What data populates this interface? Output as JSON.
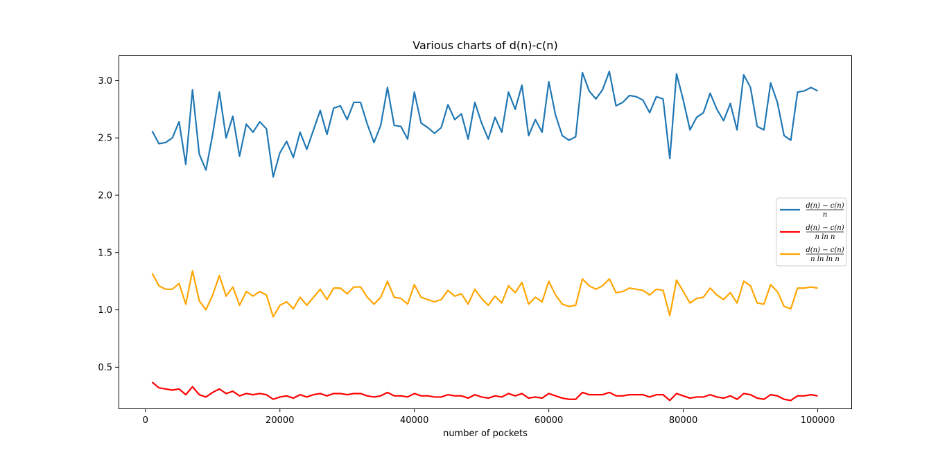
{
  "chart_data": {
    "type": "line",
    "title": "Various charts of d(n)-c(n)",
    "xlabel": "number of pockets",
    "ylabel": "",
    "xlim": [
      -4000,
      105000
    ],
    "ylim": [
      0.14,
      3.22
    ],
    "xticks": [
      0,
      20000,
      40000,
      60000,
      80000,
      100000
    ],
    "xtick_labels": [
      "0",
      "20000",
      "40000",
      "60000",
      "80000",
      "100000"
    ],
    "yticks": [
      0.5,
      1.0,
      1.5,
      2.0,
      2.5,
      3.0
    ],
    "ytick_labels": [
      "0.5",
      "1.0",
      "1.5",
      "2.0",
      "2.5",
      "3.0"
    ],
    "grid": false,
    "legend_position": "center-right",
    "x": [
      1000,
      2000,
      3000,
      4000,
      5000,
      6000,
      7000,
      8000,
      9000,
      10000,
      11000,
      12000,
      13000,
      14000,
      15000,
      16000,
      17000,
      18000,
      19000,
      20000,
      21000,
      22000,
      23000,
      24000,
      25000,
      26000,
      27000,
      28000,
      29000,
      30000,
      31000,
      32000,
      33000,
      34000,
      35000,
      36000,
      37000,
      38000,
      39000,
      40000,
      41000,
      42000,
      43000,
      44000,
      45000,
      46000,
      47000,
      48000,
      49000,
      50000,
      51000,
      52000,
      53000,
      54000,
      55000,
      56000,
      57000,
      58000,
      59000,
      60000,
      61000,
      62000,
      63000,
      64000,
      65000,
      66000,
      67000,
      68000,
      69000,
      70000,
      71000,
      72000,
      73000,
      74000,
      75000,
      76000,
      77000,
      78000,
      79000,
      80000,
      81000,
      82000,
      83000,
      84000,
      85000,
      86000,
      87000,
      88000,
      89000,
      90000,
      91000,
      92000,
      93000,
      94000,
      95000,
      96000,
      97000,
      98000,
      99000,
      100000
    ],
    "series": [
      {
        "name": "d(n)−c(n) / n",
        "legend_num": "d(n) − c(n)",
        "legend_den": "n",
        "color": "#1f77b4",
        "values": [
          2.56,
          2.45,
          2.46,
          2.5,
          2.64,
          2.27,
          2.92,
          2.36,
          2.22,
          2.53,
          2.9,
          2.5,
          2.69,
          2.34,
          2.62,
          2.55,
          2.64,
          2.58,
          2.16,
          2.37,
          2.47,
          2.33,
          2.55,
          2.4,
          2.57,
          2.74,
          2.53,
          2.76,
          2.78,
          2.66,
          2.81,
          2.81,
          2.62,
          2.46,
          2.61,
          2.94,
          2.61,
          2.6,
          2.49,
          2.9,
          2.63,
          2.59,
          2.54,
          2.59,
          2.79,
          2.66,
          2.71,
          2.49,
          2.81,
          2.63,
          2.49,
          2.68,
          2.55,
          2.9,
          2.75,
          2.96,
          2.52,
          2.66,
          2.55,
          2.99,
          2.7,
          2.52,
          2.48,
          2.51,
          3.07,
          2.91,
          2.84,
          2.92,
          3.08,
          2.78,
          2.81,
          2.87,
          2.86,
          2.83,
          2.72,
          2.86,
          2.84,
          2.32,
          3.06,
          2.83,
          2.57,
          2.68,
          2.72,
          2.89,
          2.75,
          2.65,
          2.8,
          2.57,
          3.05,
          2.94,
          2.6,
          2.57,
          2.98,
          2.81,
          2.52,
          2.48,
          2.9,
          2.91,
          2.94,
          2.91
        ]
      },
      {
        "name": "d(n)−c(n) / n ln n",
        "legend_num": "d(n) − c(n)",
        "legend_den": "n ln n",
        "color": "#ff0000",
        "values": [
          0.37,
          0.32,
          0.31,
          0.3,
          0.31,
          0.26,
          0.33,
          0.26,
          0.24,
          0.28,
          0.31,
          0.27,
          0.29,
          0.25,
          0.27,
          0.26,
          0.27,
          0.26,
          0.22,
          0.24,
          0.25,
          0.23,
          0.26,
          0.24,
          0.26,
          0.27,
          0.25,
          0.27,
          0.27,
          0.26,
          0.27,
          0.27,
          0.25,
          0.24,
          0.25,
          0.28,
          0.25,
          0.25,
          0.24,
          0.27,
          0.25,
          0.25,
          0.24,
          0.24,
          0.26,
          0.25,
          0.25,
          0.23,
          0.26,
          0.24,
          0.23,
          0.25,
          0.24,
          0.27,
          0.25,
          0.27,
          0.23,
          0.24,
          0.23,
          0.27,
          0.25,
          0.23,
          0.22,
          0.22,
          0.28,
          0.26,
          0.26,
          0.26,
          0.28,
          0.25,
          0.25,
          0.26,
          0.26,
          0.26,
          0.24,
          0.26,
          0.26,
          0.21,
          0.27,
          0.25,
          0.23,
          0.24,
          0.24,
          0.26,
          0.24,
          0.23,
          0.25,
          0.22,
          0.27,
          0.26,
          0.23,
          0.22,
          0.26,
          0.25,
          0.22,
          0.21,
          0.25,
          0.25,
          0.26,
          0.25
        ]
      },
      {
        "name": "d(n)−c(n) / n ln ln n",
        "legend_num": "d(n) − c(n)",
        "legend_den": "n ln ln n",
        "color": "#ffa500",
        "values": [
          1.32,
          1.21,
          1.18,
          1.18,
          1.23,
          1.05,
          1.34,
          1.08,
          1.0,
          1.13,
          1.3,
          1.12,
          1.2,
          1.04,
          1.16,
          1.12,
          1.16,
          1.13,
          0.94,
          1.04,
          1.07,
          1.01,
          1.11,
          1.04,
          1.11,
          1.18,
          1.09,
          1.19,
          1.19,
          1.14,
          1.2,
          1.2,
          1.11,
          1.05,
          1.11,
          1.25,
          1.11,
          1.1,
          1.05,
          1.22,
          1.11,
          1.09,
          1.07,
          1.09,
          1.17,
          1.12,
          1.14,
          1.05,
          1.18,
          1.1,
          1.04,
          1.12,
          1.06,
          1.21,
          1.15,
          1.24,
          1.05,
          1.11,
          1.07,
          1.25,
          1.13,
          1.05,
          1.03,
          1.04,
          1.27,
          1.21,
          1.18,
          1.21,
          1.27,
          1.15,
          1.16,
          1.19,
          1.18,
          1.17,
          1.13,
          1.18,
          1.17,
          0.95,
          1.26,
          1.16,
          1.06,
          1.1,
          1.11,
          1.19,
          1.13,
          1.09,
          1.15,
          1.06,
          1.25,
          1.21,
          1.06,
          1.05,
          1.22,
          1.16,
          1.03,
          1.01,
          1.19,
          1.19,
          1.2,
          1.19
        ]
      }
    ]
  }
}
